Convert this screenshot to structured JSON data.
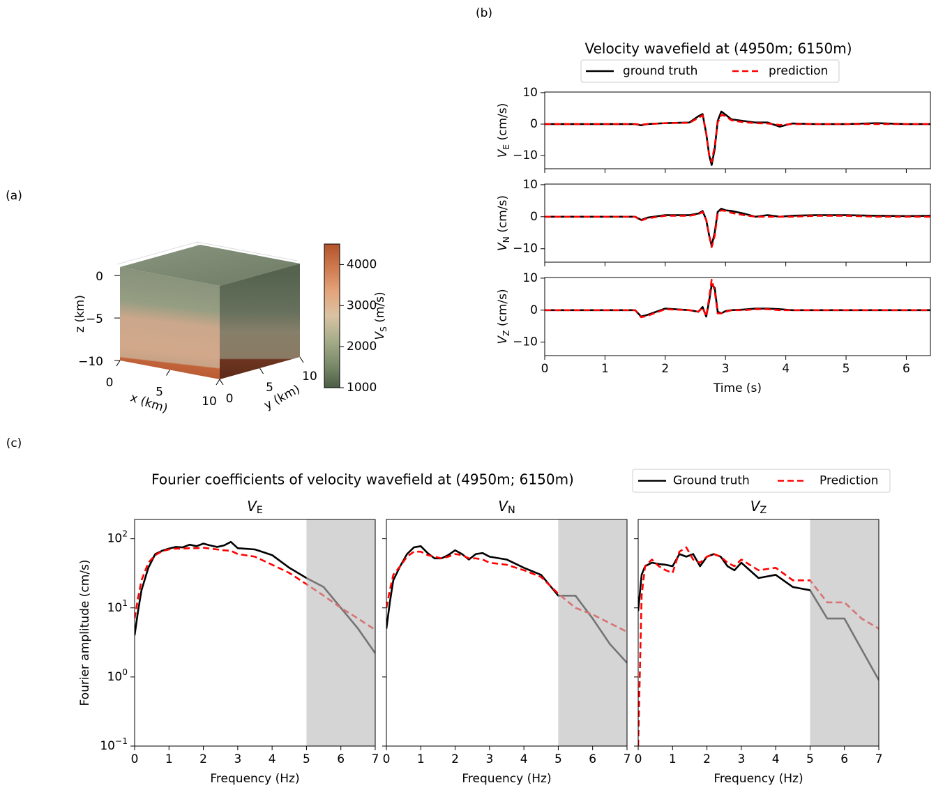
{
  "chart_data": [
    {
      "type": "cube3d",
      "panel_label": "(a)",
      "xlabel": "x (km)",
      "ylabel": "y (km)",
      "zlabel": "z (km)",
      "xlim": [
        0,
        10
      ],
      "ylim": [
        0,
        10
      ],
      "zlim": [
        -10,
        1
      ],
      "xticks": [
        0,
        5,
        10
      ],
      "yticks": [
        0,
        5,
        10
      ],
      "zticks": [
        0,
        {
          "value": -5,
          "label": "−5"
        },
        {
          "value": -10,
          "label": "−10"
        }
      ],
      "colorbar": {
        "label": "V_S (m/s)",
        "lim": [
          1000,
          4500
        ],
        "ticks": [
          1000,
          2000,
          3000,
          4000
        ],
        "colors": [
          "#4b5e46",
          "#7d8c6b",
          "#a7ad8a",
          "#d9c3a3",
          "#e4a47c",
          "#cf7a4f",
          "#b4532b"
        ]
      }
    },
    {
      "type": "line",
      "panel_label": "(b)",
      "suptitle": "Velocity wavefield at (4950m; 6150m)",
      "legend": "upper center",
      "ylabel": "V_E (cm/s)",
      "xlim": [
        0,
        6.4
      ],
      "ylim": [
        -14.2,
        10.2
      ],
      "xticks": [
        0,
        1,
        2,
        3,
        4,
        5,
        6
      ],
      "show_xticklabels": false,
      "yticks": [
        {
          "value": -10,
          "label": "−10"
        },
        0,
        10
      ],
      "x": [
        0,
        1.0,
        1.5,
        1.6,
        1.7,
        2.0,
        2.4,
        2.55,
        2.62,
        2.68,
        2.73,
        2.77,
        2.82,
        2.87,
        2.93,
        3.0,
        3.1,
        3.3,
        3.5,
        3.7,
        3.9,
        4.1,
        4.5,
        5.0,
        5.5,
        6.0,
        6.4
      ],
      "series": [
        {
          "name": "ground truth",
          "color": "#000000",
          "style": "solid",
          "values": [
            0,
            0,
            0,
            -0.4,
            0,
            0.3,
            0.5,
            2.5,
            3.2,
            -3,
            -10,
            -13,
            -8,
            1,
            4,
            3,
            1.5,
            1,
            0.5,
            0.5,
            -0.8,
            0.2,
            0,
            0,
            0.3,
            0,
            0
          ]
        },
        {
          "name": "prediction",
          "color": "#ff0000",
          "style": "dashed",
          "values": [
            0,
            0,
            0,
            -0.2,
            0,
            0.3,
            0.4,
            2,
            2.8,
            -3,
            -10,
            -12,
            -7,
            0.5,
            3,
            2.5,
            1.2,
            0.6,
            0.3,
            0.2,
            -0.3,
            0,
            0,
            0,
            0,
            0,
            0
          ]
        }
      ]
    },
    {
      "type": "line",
      "ylabel": "V_N (cm/s)",
      "xlim": [
        0,
        6.4
      ],
      "ylim": [
        -14.2,
        10.2
      ],
      "xticks": [
        0,
        1,
        2,
        3,
        4,
        5,
        6
      ],
      "show_xticklabels": false,
      "yticks": [
        {
          "value": -10,
          "label": "−10"
        },
        0,
        10
      ],
      "x": [
        0,
        1.0,
        1.5,
        1.6,
        1.7,
        2.0,
        2.4,
        2.55,
        2.62,
        2.68,
        2.73,
        2.77,
        2.82,
        2.87,
        2.93,
        3.0,
        3.1,
        3.3,
        3.5,
        3.7,
        3.9,
        4.1,
        4.5,
        5.0,
        5.5,
        6.0,
        6.4
      ],
      "series": [
        {
          "name": "ground truth",
          "color": "#000000",
          "style": "solid",
          "values": [
            0,
            0,
            0,
            -1,
            -0.3,
            0.5,
            0.5,
            1,
            1.8,
            -1,
            -6,
            -9,
            -5,
            1.5,
            2.5,
            2,
            1.8,
            1,
            0,
            0.5,
            0,
            0.3,
            0.5,
            0.5,
            0.3,
            0.2,
            0.3
          ]
        },
        {
          "name": "prediction",
          "color": "#ff0000",
          "style": "dashed",
          "values": [
            0,
            0,
            0,
            -1.2,
            -0.5,
            0.3,
            0.3,
            0.8,
            1.5,
            -1,
            -6,
            -9.5,
            -6,
            1,
            2,
            1.8,
            1.2,
            0.5,
            0,
            0,
            0,
            0,
            0.3,
            0.3,
            0,
            0,
            0
          ]
        }
      ]
    },
    {
      "type": "line",
      "ylabel": "V_Z (cm/s)",
      "xlabel": "Time (s)",
      "xlim": [
        0,
        6.4
      ],
      "ylim": [
        -14.2,
        10.2
      ],
      "xticks": [
        0,
        1,
        2,
        3,
        4,
        5,
        6
      ],
      "yticks": [
        {
          "value": -10,
          "label": "−10"
        },
        0,
        10
      ],
      "x": [
        0,
        1.0,
        1.5,
        1.6,
        1.7,
        2.0,
        2.4,
        2.55,
        2.62,
        2.68,
        2.73,
        2.77,
        2.82,
        2.87,
        2.93,
        3.0,
        3.1,
        3.3,
        3.5,
        3.7,
        3.9,
        4.1,
        4.5,
        5.0,
        5.5,
        6.0,
        6.4
      ],
      "series": [
        {
          "name": "ground truth",
          "color": "#000000",
          "style": "solid",
          "values": [
            0,
            0,
            0,
            -2,
            -1.5,
            0.5,
            0,
            -0.5,
            1,
            -2,
            3,
            8,
            7,
            -0.5,
            -1,
            -0.3,
            0,
            0.2,
            0.5,
            0.5,
            0.3,
            0,
            0,
            0,
            0,
            0,
            0
          ]
        },
        {
          "name": "prediction",
          "color": "#ff0000",
          "style": "dashed",
          "values": [
            0,
            0,
            0,
            -2.2,
            -1.8,
            0.3,
            0,
            -0.5,
            0.8,
            -2,
            4,
            9.5,
            6,
            -1,
            -1,
            -0.5,
            0,
            0,
            0.3,
            0.3,
            0,
            0,
            0,
            0,
            0,
            0,
            0
          ]
        }
      ]
    },
    {
      "type": "line",
      "panel_label": "(c)",
      "suptitle": "Fourier coefficients of velocity wavefield at (4950m; 6150m)",
      "legend": "upper right",
      "title": "V_E",
      "xlabel": "Frequency (Hz)",
      "ylabel": "Fourier amplitude (cm/s)",
      "log_y": true,
      "shade": [
        5,
        7
      ],
      "xlim": [
        0,
        7
      ],
      "ylim": [
        0.1,
        190
      ],
      "xticks": [
        0,
        1,
        2,
        3,
        4,
        5,
        6,
        7
      ],
      "yticks": [
        {
          "value": 0.1,
          "label": "10^−1"
        },
        {
          "value": 1,
          "label": "10^0"
        },
        {
          "value": 10,
          "label": "10^1"
        },
        {
          "value": 100,
          "label": "10^2"
        }
      ],
      "x": [
        0,
        0.1,
        0.2,
        0.4,
        0.6,
        0.8,
        1.0,
        1.2,
        1.4,
        1.6,
        1.8,
        2.0,
        2.2,
        2.4,
        2.6,
        2.8,
        3.0,
        3.5,
        4.0,
        4.5,
        5.0,
        5.5,
        6.0,
        6.5,
        7.0
      ],
      "series": [
        {
          "name": "Ground truth",
          "color": "#000000",
          "style": "solid",
          "values": [
            4,
            9,
            18,
            38,
            60,
            67,
            72,
            76,
            75,
            82,
            78,
            85,
            80,
            76,
            80,
            90,
            73,
            70,
            58,
            38,
            27,
            20,
            10,
            5,
            2.2
          ]
        },
        {
          "name": "Prediction",
          "color": "#ff0000",
          "style": "dashed",
          "values": [
            7,
            14,
            25,
            45,
            58,
            66,
            70,
            72,
            72,
            73,
            73,
            74,
            72,
            70,
            68,
            67,
            60,
            55,
            42,
            32,
            22,
            15,
            10,
            7,
            4.8
          ]
        }
      ]
    },
    {
      "type": "line",
      "title": "V_N",
      "xlabel": "Frequency (Hz)",
      "log_y": true,
      "shade": [
        5,
        7
      ],
      "show_yticklabels": false,
      "xlim": [
        0,
        7
      ],
      "ylim": [
        0.1,
        190
      ],
      "xticks": [
        0,
        1,
        2,
        3,
        4,
        5,
        6,
        7
      ],
      "yticks": [
        {
          "value": 0.1,
          "label": "10^−1"
        },
        {
          "value": 1,
          "label": "10^0"
        },
        {
          "value": 10,
          "label": "10^1"
        },
        {
          "value": 100,
          "label": "10^2"
        }
      ],
      "x": [
        0,
        0.1,
        0.2,
        0.4,
        0.6,
        0.8,
        1.0,
        1.2,
        1.4,
        1.6,
        1.8,
        2.0,
        2.2,
        2.4,
        2.6,
        2.8,
        3.0,
        3.5,
        4.0,
        4.5,
        5.0,
        5.5,
        6.0,
        6.5,
        7.0
      ],
      "series": [
        {
          "name": "Ground truth",
          "color": "#000000",
          "style": "solid",
          "values": [
            5,
            12,
            25,
            40,
            60,
            75,
            78,
            62,
            52,
            52,
            58,
            68,
            60,
            50,
            60,
            62,
            55,
            50,
            38,
            30,
            15,
            15,
            7,
            3,
            1.6
          ]
        },
        {
          "name": "Prediction",
          "color": "#ff0000",
          "style": "dashed",
          "values": [
            10,
            18,
            30,
            40,
            55,
            65,
            65,
            58,
            55,
            52,
            55,
            60,
            58,
            52,
            52,
            50,
            45,
            42,
            35,
            28,
            16,
            10,
            8,
            6,
            4.5
          ]
        }
      ]
    },
    {
      "type": "line",
      "title": "V_Z",
      "xlabel": "Frequency (Hz)",
      "log_y": true,
      "shade": [
        5,
        7
      ],
      "show_yticklabels": false,
      "xlim": [
        0,
        7
      ],
      "ylim": [
        0.1,
        190
      ],
      "xticks": [
        0,
        1,
        2,
        3,
        4,
        5,
        6,
        7
      ],
      "yticks": [
        {
          "value": 0.1,
          "label": "10^−1"
        },
        {
          "value": 1,
          "label": "10^0"
        },
        {
          "value": 10,
          "label": "10^1"
        },
        {
          "value": 100,
          "label": "10^2"
        }
      ],
      "x": [
        0,
        0.1,
        0.2,
        0.4,
        0.6,
        0.8,
        1.0,
        1.2,
        1.4,
        1.6,
        1.8,
        2.0,
        2.2,
        2.4,
        2.6,
        2.8,
        3.0,
        3.5,
        4.0,
        4.5,
        5.0,
        5.5,
        6.0,
        6.5,
        7.0
      ],
      "series": [
        {
          "name": "Ground truth",
          "color": "#000000",
          "style": "solid",
          "values": [
            9,
            30,
            40,
            45,
            43,
            42,
            40,
            60,
            55,
            60,
            40,
            55,
            60,
            55,
            40,
            35,
            45,
            27,
            30,
            20,
            18,
            7,
            7,
            2.5,
            0.9
          ]
        },
        {
          "name": "Prediction",
          "color": "#ff0000",
          "style": "dashed",
          "values": [
            0.1,
            15,
            40,
            50,
            40,
            35,
            32,
            65,
            75,
            50,
            45,
            55,
            60,
            55,
            45,
            40,
            50,
            35,
            38,
            25,
            25,
            12,
            12,
            7,
            5
          ]
        }
      ]
    }
  ]
}
